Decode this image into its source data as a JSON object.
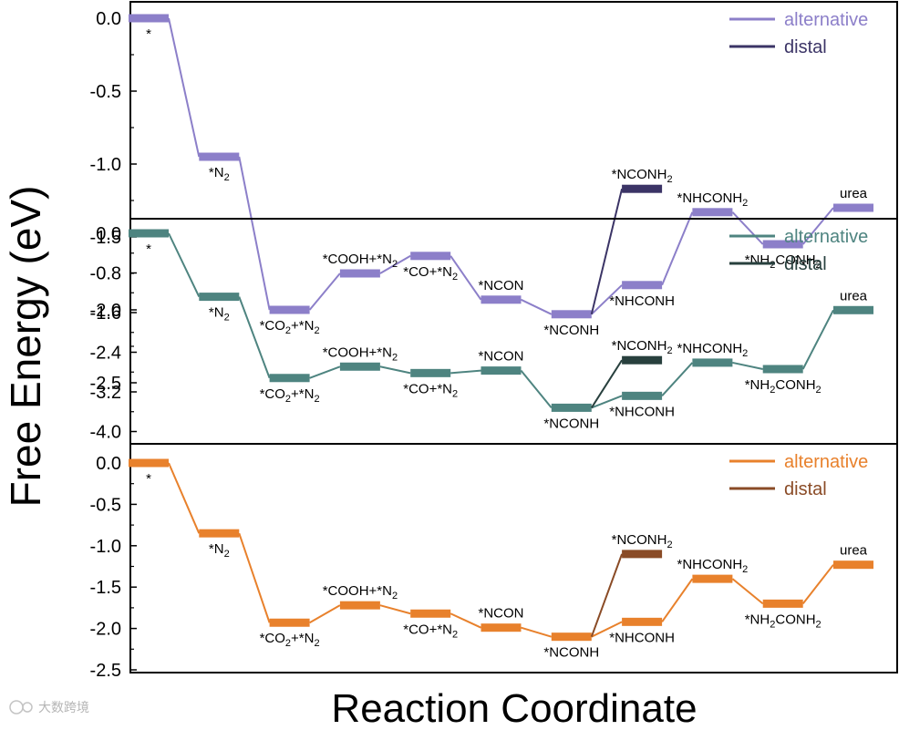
{
  "figure": {
    "ylabel": "Free Energy (eV)",
    "xlabel": "Reaction Coordinate",
    "watermark": "大数跨境"
  },
  "chart_data": [
    {
      "type": "line",
      "title": "",
      "color_alternative": "#8c7fc9",
      "color_distal": "#3b3466",
      "ylim": [
        -2.75,
        0.1
      ],
      "yticks": [
        0.0,
        -0.5,
        -1.0,
        -1.5,
        -2.0,
        -2.5
      ],
      "ytick_labels": [
        "0.0",
        "-0.5",
        "-1.0",
        "-1.5",
        "-2.0",
        "-2.5"
      ],
      "legend": [
        "alternative",
        "distal"
      ],
      "series": [
        {
          "name": "alternative",
          "states": [
            {
              "x": 0,
              "y": 0.0,
              "label": "*",
              "pos": "below"
            },
            {
              "x": 1,
              "y": -0.95,
              "label": "*N2",
              "pos": "below"
            },
            {
              "x": 2,
              "y": -2.0,
              "label": "*CO2+*N2",
              "pos": "below"
            },
            {
              "x": 3,
              "y": -1.75,
              "label": "*COOH+*N2",
              "pos": "above"
            },
            {
              "x": 4,
              "y": -1.63,
              "label": "*CO+*N2",
              "pos": "below"
            },
            {
              "x": 5,
              "y": -1.93,
              "label": "*NCON",
              "pos": "above"
            },
            {
              "x": 6,
              "y": -2.03,
              "label": "*NCONH",
              "pos": "below"
            },
            {
              "x": 7,
              "y": -1.83,
              "label": "*NHCONH",
              "pos": "below"
            },
            {
              "x": 8,
              "y": -1.33,
              "label": "*NHCONH2",
              "pos": "above"
            },
            {
              "x": 9,
              "y": -1.55,
              "label": "*NH2CONH2",
              "pos": "below"
            },
            {
              "x": 10,
              "y": -1.3,
              "label": "urea",
              "pos": "above"
            }
          ]
        },
        {
          "name": "distal",
          "states": [
            {
              "x": 6,
              "y": -2.03
            },
            {
              "x": 7,
              "y": -1.17,
              "label": "*NCONH2",
              "pos": "above"
            }
          ]
        }
      ]
    },
    {
      "type": "line",
      "title": "",
      "color_alternative": "#4e8480",
      "color_distal": "#28403e",
      "ylim": [
        -4.3,
        0.2
      ],
      "yticks": [
        0.0,
        -0.8,
        -1.6,
        -2.4,
        -3.2,
        -4.0
      ],
      "ytick_labels": [
        "0.0",
        "-0.8",
        "-1.6",
        "-2.4",
        "-3.2",
        "-4.0"
      ],
      "legend": [
        "alternative",
        "distal"
      ],
      "series": [
        {
          "name": "alternative",
          "states": [
            {
              "x": 0,
              "y": 0.0,
              "label": "*",
              "pos": "below"
            },
            {
              "x": 1,
              "y": -1.28,
              "label": "*N2",
              "pos": "below"
            },
            {
              "x": 2,
              "y": -2.92,
              "label": "*CO2+*N2",
              "pos": "below"
            },
            {
              "x": 3,
              "y": -2.69,
              "label": "*COOH+*N2",
              "pos": "above"
            },
            {
              "x": 4,
              "y": -2.82,
              "label": "*CO+*N2",
              "pos": "below"
            },
            {
              "x": 5,
              "y": -2.77,
              "label": "*NCON",
              "pos": "above"
            },
            {
              "x": 6,
              "y": -3.52,
              "label": "*NCONH",
              "pos": "below"
            },
            {
              "x": 7,
              "y": -3.28,
              "label": "*NHCONH",
              "pos": "below"
            },
            {
              "x": 8,
              "y": -2.61,
              "label": "*NHCONH2",
              "pos": "above"
            },
            {
              "x": 9,
              "y": -2.74,
              "label": "*NH2CONH2",
              "pos": "below"
            },
            {
              "x": 10,
              "y": -1.55,
              "label": "urea",
              "pos": "above"
            }
          ]
        },
        {
          "name": "distal",
          "states": [
            {
              "x": 6,
              "y": -3.52
            },
            {
              "x": 7,
              "y": -2.56,
              "label": "*NCONH2",
              "pos": "above"
            }
          ]
        }
      ]
    },
    {
      "type": "line",
      "title": "",
      "color_alternative": "#e8812c",
      "color_distal": "#8a4b26",
      "ylim": [
        -2.5,
        0.1
      ],
      "yticks": [
        0.0,
        -0.5,
        -1.0,
        -1.5,
        -2.0,
        -2.5
      ],
      "ytick_labels": [
        "0.0",
        "-0.5",
        "-1.0",
        "-1.5",
        "-2.0",
        "-2.5"
      ],
      "legend": [
        "alternative",
        "distal"
      ],
      "series": [
        {
          "name": "alternative",
          "states": [
            {
              "x": 0,
              "y": 0.0,
              "label": "*",
              "pos": "below"
            },
            {
              "x": 1,
              "y": -0.85,
              "label": "*N2",
              "pos": "below"
            },
            {
              "x": 2,
              "y": -1.93,
              "label": "*CO2+*N2",
              "pos": "below"
            },
            {
              "x": 3,
              "y": -1.72,
              "label": "*COOH+*N2",
              "pos": "above"
            },
            {
              "x": 4,
              "y": -1.82,
              "label": "*CO+*N2",
              "pos": "below"
            },
            {
              "x": 5,
              "y": -1.99,
              "label": "*NCON",
              "pos": "above"
            },
            {
              "x": 6,
              "y": -2.1,
              "label": "*NCONH",
              "pos": "below"
            },
            {
              "x": 7,
              "y": -1.92,
              "label": "*NHCONH",
              "pos": "below"
            },
            {
              "x": 8,
              "y": -1.4,
              "label": "*NHCONH2",
              "pos": "above"
            },
            {
              "x": 9,
              "y": -1.7,
              "label": "*NH2CONH2",
              "pos": "below"
            },
            {
              "x": 10,
              "y": -1.23,
              "label": "urea",
              "pos": "above"
            }
          ]
        },
        {
          "name": "distal",
          "states": [
            {
              "x": 6,
              "y": -2.1
            },
            {
              "x": 7,
              "y": -1.1,
              "label": "*NCONH2",
              "pos": "above"
            }
          ]
        }
      ]
    }
  ]
}
